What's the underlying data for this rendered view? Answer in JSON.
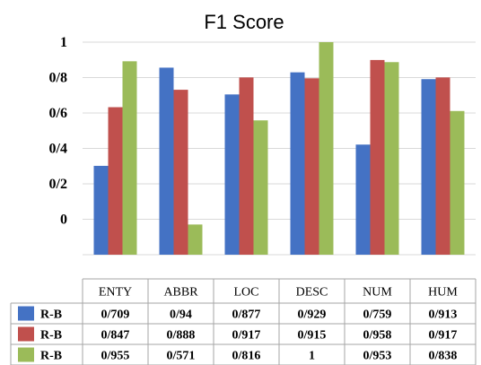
{
  "chart_data": {
    "type": "bar",
    "title": "F1 Score",
    "categories": [
      "ENTY",
      "ABBR",
      "LOC",
      "DESC",
      "NUM",
      "HUM"
    ],
    "y_tick_labels": [
      "0",
      "0/2",
      "0/4",
      "0/6",
      "0/8",
      "1"
    ],
    "ylim": [
      0.5,
      1
    ],
    "grid": true,
    "legend": "table-bottom",
    "series": [
      {
        "name": "R-B",
        "color": "#4472c4",
        "values": [
          0.709,
          0.94,
          0.877,
          0.929,
          0.759,
          0.913
        ],
        "labels": [
          "0/709",
          "0/94",
          "0/877",
          "0/929",
          "0/759",
          "0/913"
        ]
      },
      {
        "name": "R-B",
        "color": "#c0504d",
        "values": [
          0.847,
          0.888,
          0.917,
          0.915,
          0.958,
          0.917
        ],
        "labels": [
          "0/847",
          "0/888",
          "0/917",
          "0/915",
          "0/958",
          "0/917"
        ]
      },
      {
        "name": "R-B",
        "color": "#9bbb59",
        "values": [
          0.955,
          0.571,
          0.816,
          1,
          0.953,
          0.838
        ],
        "labels": [
          "0/955",
          "0/571",
          "0/816",
          "1",
          "0/953",
          "0/838"
        ]
      }
    ]
  }
}
